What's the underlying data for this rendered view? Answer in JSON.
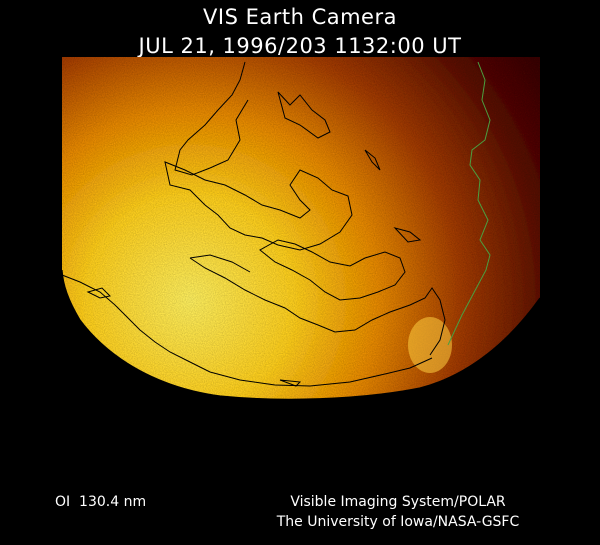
{
  "header": {
    "title": "VIS Earth Camera",
    "subtitle": "JUL 21, 1996/203 1132:00 UT"
  },
  "footer": {
    "filter": "OI  130.4 nm",
    "credits": [
      "Visible Imaging System/POLAR",
      "The University of Iowa/NASA-GSFC"
    ]
  }
}
